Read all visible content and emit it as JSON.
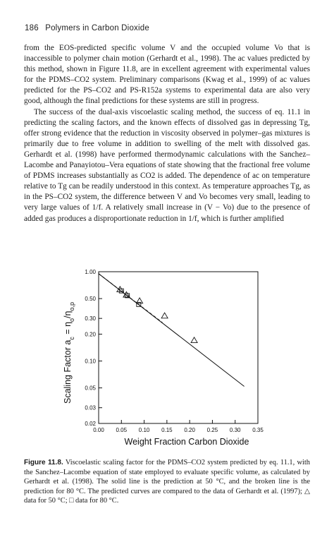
{
  "header": {
    "page_number": "186",
    "running_title": "Polymers in Carbon Dioxide"
  },
  "body": {
    "paragraphs": [
      "from the EOS-predicted specific volume V and the occupied volume Vo that is inaccessible to polymer chain motion (Gerhardt et al., 1998). The ac values predicted by this method, shown in Figure 11.8, are in excellent agreement with experimental values for the PDMS–CO2 system. Preliminary comparisons (Kwag et al., 1999) of ac values predicted for the PS–CO2 and PS-R152a systems to experimental data are also very good, although the final predictions for these systems are still in progress.",
      "The success of the dual-axis viscoelastic scaling method, the success of eq. 11.1 in predicting the scaling factors, and the known effects of dissolved gas in depressing Tg, offer strong evidence that the reduction in viscosity observed in polymer–gas mixtures is primarily due to free volume in addition to swelling of the melt with dissolved gas. Gerhardt et al. (1998) have performed thermodynamic calculations with the Sanchez–Lacombe and Panayiotou–Vera equations of state showing that the fractional free volume of PDMS increases substantially as CO2 is added. The dependence of ac on temperature relative to Tg can be readily understood in this context. As temperature approaches Tg, as in the PS–CO2 system, the difference between V and Vo becomes very small, leading to very large values of 1/f. A relatively small increase in (V − Vo) due to the presence of added gas produces a disproportionate reduction in 1/f, which is further amplified"
    ]
  },
  "chart_data": {
    "type": "scatter",
    "xlabel": "Weight Fraction Carbon Dioxide",
    "ylabel": "Scaling Factor a_c = η_o/η_o,p",
    "x_scale": "linear",
    "y_scale": "log",
    "xlim": [
      0,
      0.35
    ],
    "ylim": [
      0.02,
      1.0
    ],
    "x_ticks": [
      "0.00",
      "0.05",
      "0.10",
      "0.15",
      "0.20",
      "0.25",
      "0.30",
      "0.35"
    ],
    "y_ticks": [
      {
        "value": 1.0,
        "label": "1.00"
      },
      {
        "value": 0.5,
        "label": "0.50"
      },
      {
        "value": 0.3,
        "label": "0.30"
      },
      {
        "value": 0.2,
        "label": "0.20"
      },
      {
        "value": 0.1,
        "label": "0.10"
      },
      {
        "value": 0.05,
        "label": "0.05"
      },
      {
        "value": 0.03,
        "label": "0.03"
      },
      {
        "value": 0.02,
        "label": "0.02"
      }
    ],
    "series": [
      {
        "name": "Prediction 50 °C",
        "kind": "line",
        "style": "solid",
        "x": [
          0.0,
          0.32
        ],
        "y": [
          0.95,
          0.052
        ]
      },
      {
        "name": "Prediction 80 °C",
        "kind": "line",
        "style": "dashed",
        "x": [
          0.0,
          0.14
        ],
        "y": [
          0.95,
          0.27
        ]
      },
      {
        "name": "Data 50 °C",
        "kind": "markers",
        "marker": "triangle",
        "x": [
          0.047,
          0.061,
          0.09,
          0.145,
          0.21
        ],
        "y": [
          0.63,
          0.55,
          0.47,
          0.32,
          0.17
        ]
      },
      {
        "name": "Data 80 °C",
        "kind": "markers",
        "marker": "square",
        "x": [
          0.05,
          0.063,
          0.088
        ],
        "y": [
          0.61,
          0.54,
          0.43
        ]
      }
    ]
  },
  "caption": {
    "label": "Figure 11.8.",
    "text": "Viscoelastic scaling factor for the PDMS–CO2 system predicted by eq. 11.1, with the Sanchez–Lacombe equation of state employed to evaluate specific volume, as calculated by Gerhardt et al. (1998). The solid line is the prediction at 50 °C, and the broken line is the prediction for 80 °C. The predicted curves are compared to the data of Gerhardt et al. (1997); △ data for 50 °C; □ data for 80 °C."
  }
}
